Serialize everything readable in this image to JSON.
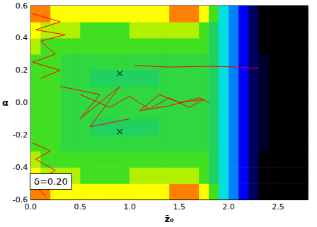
{
  "chart_data": {
    "type": "contour_heatmap",
    "x_label": "z̄₀",
    "y_label": "α",
    "annotation": "δ=0.20",
    "xlim": [
      0,
      2.8
    ],
    "ylim": [
      -0.6,
      0.6
    ],
    "xticks": [
      {
        "value": 0,
        "label": "0.0"
      },
      0.5,
      {
        "value": 1,
        "label": "1.0"
      },
      1.5,
      {
        "value": 2,
        "label": "2.0"
      },
      2.5
    ],
    "yticks": [
      -0.6,
      -0.4,
      -0.2,
      {
        "value": 0,
        "label": "0.0"
      },
      0.2,
      0.4,
      0.6
    ],
    "grid": false,
    "zlim": [
      0,
      10
    ],
    "cells": {
      "x": [
        0.05,
        0.15,
        0.25,
        0.35,
        0.45,
        0.55,
        0.65,
        0.75,
        0.85,
        0.95,
        1.05,
        1.15,
        1.25,
        1.35,
        1.45,
        1.55,
        1.65,
        1.75,
        1.85,
        1.95,
        2.05,
        2.15,
        2.25,
        2.35,
        2.45,
        2.55,
        2.65,
        2.75
      ],
      "y": [
        -0.55,
        -0.45,
        -0.35,
        -0.25,
        -0.15,
        -0.05,
        0.05,
        0.15,
        0.25,
        0.35,
        0.45,
        0.55
      ],
      "values": [
        [
          9,
          9,
          8,
          8,
          8,
          8,
          8,
          8,
          8,
          8,
          8,
          8,
          8,
          8,
          9,
          9,
          9,
          8,
          6,
          4,
          3,
          2,
          1,
          0,
          0,
          0,
          0,
          0
        ],
        [
          8,
          7,
          7,
          7,
          7,
          6,
          6,
          6,
          6,
          6,
          7,
          7,
          7,
          7,
          7,
          7,
          7,
          6,
          5,
          4,
          3,
          2,
          1,
          0,
          0,
          0,
          0,
          0
        ],
        [
          7,
          6,
          6,
          6,
          6,
          6,
          6,
          6,
          6,
          6,
          6,
          6,
          6,
          6,
          6,
          6,
          6,
          6,
          5,
          4,
          3,
          2,
          1,
          0,
          0,
          0,
          0,
          0
        ],
        [
          6,
          6,
          6,
          5.5,
          5.5,
          5.5,
          5.5,
          5.5,
          5.5,
          5.5,
          5.5,
          5.5,
          5.5,
          5.5,
          5.5,
          5.5,
          5.5,
          5.5,
          5,
          4,
          3,
          2,
          1,
          0.5,
          0,
          0,
          0,
          0
        ],
        [
          6,
          6,
          6,
          5.5,
          5.5,
          5.5,
          5,
          5,
          5,
          5,
          5,
          5,
          5,
          5.5,
          5.5,
          5.5,
          5.5,
          5.5,
          5,
          4,
          3,
          2,
          1,
          0.5,
          0,
          0,
          0,
          0
        ],
        [
          6,
          6,
          6,
          5.5,
          5.5,
          5.5,
          5.5,
          5.5,
          5.5,
          5.5,
          5.5,
          5.5,
          5.5,
          5.5,
          5.5,
          5.5,
          5.5,
          5.5,
          5,
          4,
          3,
          2,
          1,
          0.5,
          0,
          0,
          0,
          0
        ],
        [
          6,
          6,
          6,
          5.5,
          5.5,
          5.5,
          5.5,
          5.5,
          5.5,
          5.5,
          5.5,
          5.5,
          5.5,
          5.5,
          5.5,
          5.5,
          5.5,
          5.5,
          5,
          4,
          3,
          2,
          1,
          0.5,
          0,
          0,
          0,
          0
        ],
        [
          6,
          6,
          6,
          5.5,
          5.5,
          5.5,
          5,
          5,
          5,
          5,
          5,
          5,
          5,
          5.5,
          5.5,
          5.5,
          5.5,
          5.5,
          5,
          4,
          3,
          2,
          1,
          0.5,
          0,
          0,
          0,
          0
        ],
        [
          6,
          6,
          6,
          5.5,
          5.5,
          5.5,
          5.5,
          5.5,
          5.5,
          5.5,
          5.5,
          5.5,
          5.5,
          5.5,
          5.5,
          5.5,
          5.5,
          5.5,
          5,
          4,
          3,
          2,
          1,
          0.5,
          0,
          0,
          0,
          0
        ],
        [
          7,
          6,
          6,
          6,
          6,
          6,
          6,
          6,
          6,
          6,
          6,
          6,
          6,
          6,
          6,
          6,
          6,
          6,
          5,
          4,
          3,
          2,
          1,
          0,
          0,
          0,
          0,
          0
        ],
        [
          8,
          7,
          7,
          7,
          7,
          6,
          6,
          6,
          6,
          6,
          7,
          7,
          7,
          7,
          7,
          7,
          7,
          6,
          5,
          4,
          3,
          2,
          1,
          0,
          0,
          0,
          0,
          0
        ],
        [
          9,
          9,
          8,
          8,
          8,
          8,
          8,
          8,
          8,
          8,
          8,
          8,
          8,
          8,
          9,
          9,
          9,
          8,
          6,
          4,
          3,
          2,
          1,
          0,
          0,
          0,
          0,
          0
        ]
      ]
    },
    "lines": {
      "color": "#ff0000",
      "paths": [
        [
          [
            0.5,
            0.05
          ],
          [
            0.8,
            -0.03
          ],
          [
            1.0,
            0.04
          ],
          [
            1.2,
            -0.04
          ],
          [
            1.4,
            0.03
          ],
          [
            1.6,
            -0.03
          ],
          [
            1.75,
            0.02
          ],
          [
            1.5,
            0.0
          ],
          [
            1.3,
            0.05
          ],
          [
            1.1,
            -0.05
          ],
          [
            1.4,
            -0.02
          ],
          [
            1.7,
            0.03
          ],
          [
            1.8,
            0.0
          ]
        ],
        [
          [
            1.05,
            0.23
          ],
          [
            1.4,
            0.22
          ],
          [
            1.8,
            0.225
          ],
          [
            2.1,
            0.22
          ],
          [
            2.3,
            0.21
          ]
        ],
        [
          [
            0.02,
            0.55
          ],
          [
            0.3,
            0.5
          ],
          [
            0.05,
            0.45
          ],
          [
            0.35,
            0.42
          ],
          [
            0.1,
            0.38
          ],
          [
            0.25,
            0.3
          ],
          [
            0.02,
            0.25
          ],
          [
            0.3,
            0.2
          ],
          [
            0.1,
            0.15
          ]
        ],
        [
          [
            0.02,
            -0.25
          ],
          [
            0.2,
            -0.3
          ],
          [
            0.05,
            -0.35
          ],
          [
            0.25,
            -0.42
          ],
          [
            0.02,
            -0.5
          ],
          [
            0.15,
            -0.58
          ]
        ],
        [
          [
            0.3,
            0.1
          ],
          [
            0.7,
            0.05
          ],
          [
            0.5,
            -0.1
          ],
          [
            0.9,
            0.1
          ],
          [
            0.6,
            -0.15
          ],
          [
            1.0,
            -0.1
          ]
        ]
      ]
    },
    "markers": {
      "marker": "x",
      "color": "#000000",
      "points": [
        [
          0.9,
          0.18
        ],
        [
          0.9,
          -0.18
        ]
      ]
    }
  }
}
